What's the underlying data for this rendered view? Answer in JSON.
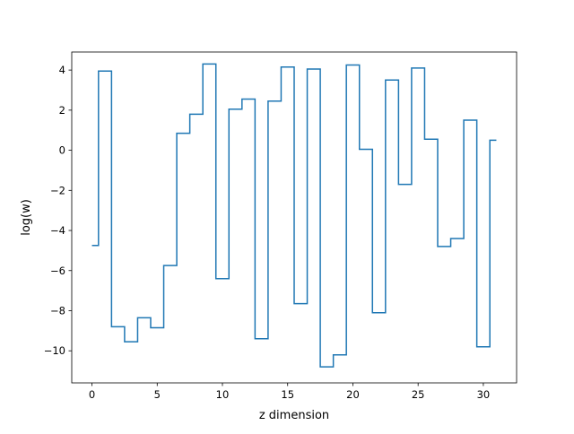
{
  "chart_data": {
    "type": "line",
    "drawstyle": "steps-mid",
    "xlabel": "z dimension",
    "ylabel": "log(w)",
    "xlim": [
      -1.55,
      32.55
    ],
    "ylim": [
      -11.6,
      4.9
    ],
    "xticks": [
      0,
      5,
      10,
      15,
      20,
      25,
      30
    ],
    "yticks": [
      -10,
      -8,
      -6,
      -4,
      -2,
      0,
      2,
      4
    ],
    "xtick_labels": [
      "0",
      "5",
      "10",
      "15",
      "20",
      "25",
      "30"
    ],
    "ytick_labels": [
      "−10",
      "−8",
      "−6",
      "−4",
      "−2",
      "0",
      "2",
      "4"
    ],
    "grid": false,
    "color": "#1f77b4",
    "series": [
      {
        "x": [
          0,
          1,
          2,
          3,
          4,
          5,
          6,
          7,
          8,
          9,
          10,
          11,
          12,
          13,
          14,
          15,
          16,
          17,
          18,
          19,
          20,
          21,
          22,
          23,
          24,
          25,
          26,
          27,
          28,
          29,
          30,
          31
        ],
        "y": [
          -4.75,
          3.95,
          -8.8,
          -9.55,
          -8.35,
          -8.85,
          -5.75,
          0.85,
          1.8,
          4.3,
          -6.4,
          2.05,
          2.55,
          -9.4,
          2.45,
          4.15,
          -7.65,
          4.05,
          -10.8,
          -10.2,
          4.25,
          0.05,
          -8.1,
          3.5,
          -1.7,
          4.1,
          0.55,
          -4.8,
          -4.4,
          1.5,
          -9.8,
          0.5
        ]
      }
    ]
  }
}
